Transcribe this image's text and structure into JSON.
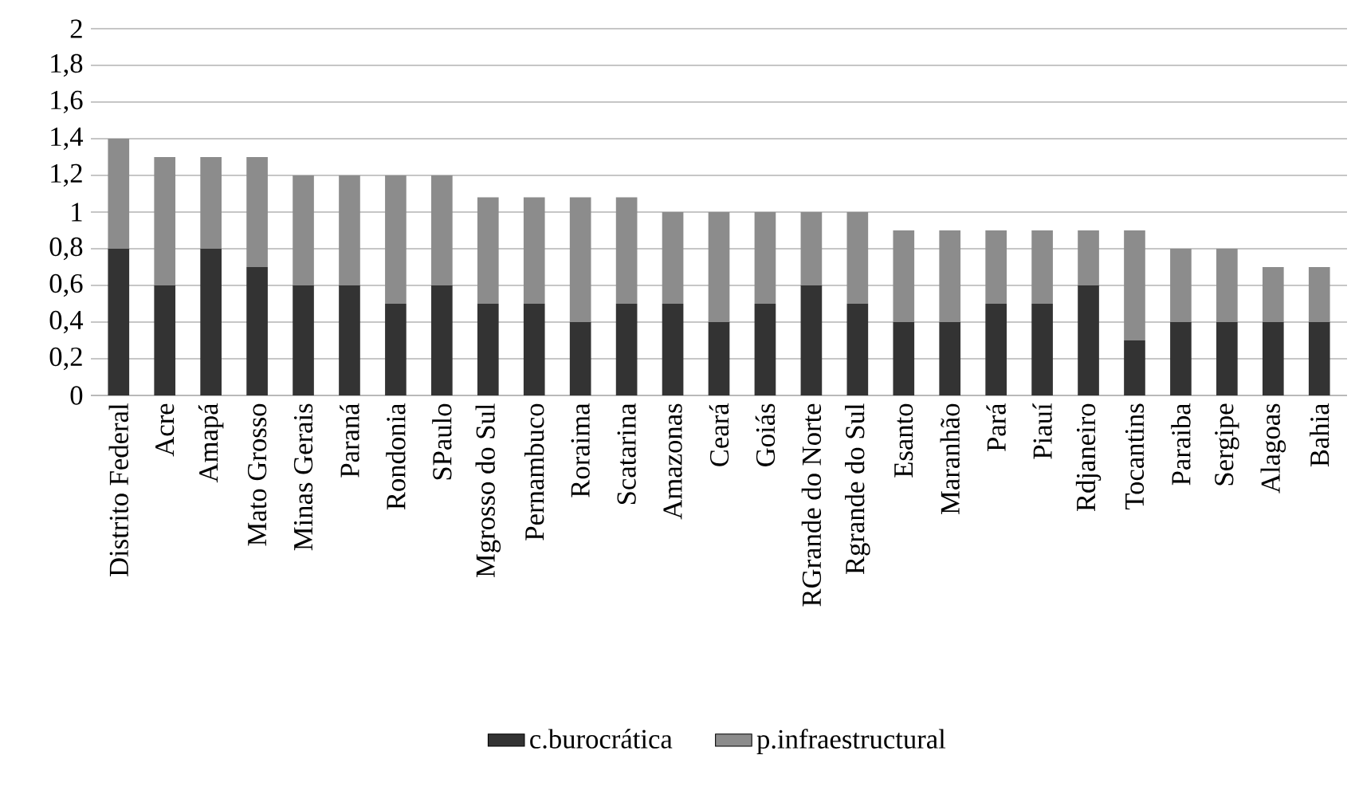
{
  "chart_data": {
    "type": "bar",
    "stacked": true,
    "grid": "y",
    "legend": "bottom",
    "categories": [
      "Distrito Federal",
      "Acre",
      "Amapá",
      "Mato Grosso",
      "Minas Gerais",
      "Paraná",
      "Rondonia",
      "SPaulo",
      "Mgrosso do Sul",
      "Pernambuco",
      "Roraima",
      "Scatarina",
      "Amazonas",
      "Ceará",
      "Goiás",
      "RGrande do Norte",
      "Rgrande do Sul",
      "Esanto",
      "Maranhão",
      "Pará",
      "Piauí",
      "Rdjaneiro",
      "Tocantins",
      "Paraiba",
      "Sergipe",
      "Alagoas",
      "Bahia"
    ],
    "series": [
      {
        "name": "c.burocrática",
        "color": "#333333",
        "values": [
          0.8,
          0.6,
          0.8,
          0.7,
          0.6,
          0.6,
          0.5,
          0.6,
          0.5,
          0.5,
          0.4,
          0.5,
          0.5,
          0.4,
          0.5,
          0.6,
          0.5,
          0.4,
          0.4,
          0.5,
          0.5,
          0.6,
          0.3,
          0.4,
          0.4,
          0.4,
          0.4
        ]
      },
      {
        "name": "p.infraestructural",
        "color": "#8c8c8c",
        "values": [
          0.6,
          0.7,
          0.5,
          0.6,
          0.6,
          0.6,
          0.7,
          0.6,
          0.58,
          0.58,
          0.68,
          0.58,
          0.5,
          0.6,
          0.5,
          0.4,
          0.5,
          0.5,
          0.5,
          0.4,
          0.4,
          0.3,
          0.6,
          0.4,
          0.4,
          0.3,
          0.3
        ]
      }
    ],
    "ylim": [
      0,
      2
    ],
    "yticks": [
      0,
      {
        "value": 0.2,
        "label": "0,2"
      },
      {
        "value": 0.4,
        "label": "0,4"
      },
      {
        "value": 0.6,
        "label": "0,6"
      },
      {
        "value": 0.8,
        "label": "0,8"
      },
      1,
      {
        "value": 1.2,
        "label": "1,2"
      },
      {
        "value": 1.4,
        "label": "1,4"
      },
      {
        "value": 1.6,
        "label": "1,6"
      },
      {
        "value": 1.8,
        "label": "1,8"
      },
      2
    ]
  }
}
